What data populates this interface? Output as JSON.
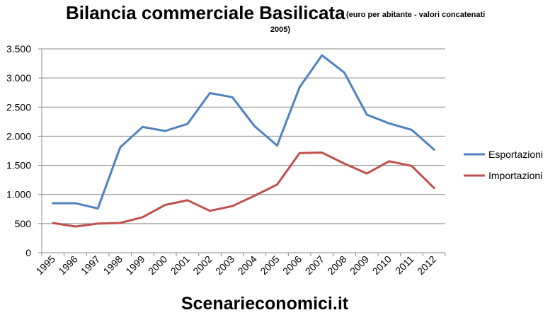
{
  "chart_data": {
    "type": "line",
    "title": "Bilancia commerciale Basilicata",
    "subtitle_line1": "(euro per abitante - valori concatenati",
    "subtitle_line2": "2005)",
    "xlabel": "",
    "ylabel": "",
    "categories": [
      "1995",
      "1996",
      "1997",
      "1998",
      "1999",
      "2000",
      "2001",
      "2002",
      "2003",
      "2004",
      "2005",
      "2006",
      "2007",
      "2008",
      "2009",
      "2010",
      "2011",
      "2012"
    ],
    "ylim": [
      0,
      3500
    ],
    "yticks": [
      0,
      500,
      1000,
      1500,
      2000,
      2500,
      3000,
      3500
    ],
    "ytick_labels": [
      "0",
      "500",
      "1.000",
      "1.500",
      "2.000",
      "2.500",
      "3.000",
      "3.500"
    ],
    "grid": true,
    "legend_position": "right",
    "series": [
      {
        "name": "Esportazioni",
        "color": "#4f81bd",
        "values": [
          850,
          850,
          760,
          1810,
          2160,
          2090,
          2210,
          2740,
          2670,
          2170,
          1840,
          2840,
          3390,
          3090,
          2370,
          2220,
          2110,
          1770
        ]
      },
      {
        "name": "Importazioni",
        "color": "#c0504d",
        "values": [
          510,
          450,
          500,
          510,
          610,
          820,
          900,
          720,
          800,
          980,
          1170,
          1710,
          1720,
          1530,
          1360,
          1570,
          1490,
          1110
        ]
      }
    ]
  },
  "watermark": "Scenarieconomici.it",
  "colors": {
    "grid": "#888888",
    "axis": "#888888",
    "background": "#ffffff"
  }
}
